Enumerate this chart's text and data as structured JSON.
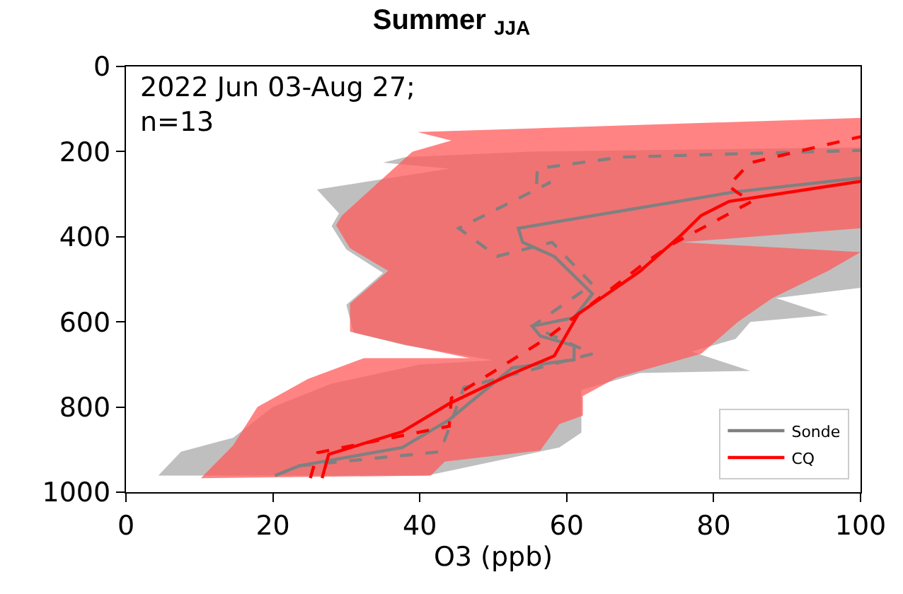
{
  "chart_data": {
    "type": "line",
    "title": "Summer $_{JJA}$",
    "xlabel": "O3 (ppb)",
    "xlim": [
      0,
      100
    ],
    "xticks": [
      0,
      20,
      40,
      60,
      80,
      100
    ],
    "ylim": [
      1000,
      0
    ],
    "yticks": [
      0,
      200,
      400,
      600,
      800,
      1000
    ],
    "legend": "bottom right",
    "annotations": [
      "2022 Jun 03-Aug 27;\nn=13"
    ],
    "series": [
      {
        "type": "area",
        "color": "#a9a9a9",
        "x": [
          4.4,
          7.5,
          14.6,
          20,
          28,
          40,
          50,
          38,
          31,
          30,
          35,
          30,
          28,
          29,
          26,
          44,
          35,
          38,
          55,
          100,
          100,
          100,
          88.5,
          95.6,
          85,
          83,
          77,
          85,
          70,
          62,
          62,
          59,
          41
        ],
        "values": [
          961,
          905,
          872,
          800,
          745,
          700,
          690,
          655,
          625,
          560,
          485,
          430,
          375,
          345,
          289,
          240,
          226,
          213,
          200,
          190,
          420,
          520,
          544,
          584,
          600,
          640,
          670,
          715,
          720,
          760,
          860,
          895,
          961
        ]
      },
      {
        "type": "area",
        "color": "#ff5a5a",
        "x": [
          10.2,
          14.6,
          17.9,
          24.8,
          32.4,
          46.8,
          37.6,
          30.5,
          30.5,
          35.7,
          30.5,
          28.6,
          29.4,
          39,
          44.3,
          39.7,
          100,
          100,
          75.6,
          100,
          95.6,
          88,
          83.3,
          78.3,
          66.8,
          62.2,
          62.2,
          59,
          56.4,
          43.4,
          41.5
        ],
        "values": [
          967,
          890,
          800,
          734,
          685,
          685,
          652,
          623,
          557,
          480,
          427,
          373,
          350,
          200,
          174,
          154,
          121,
          380,
          413,
          436,
          480,
          544,
          600,
          675,
          731,
          774,
          820,
          840,
          902,
          928,
          961
        ]
      },
      {
        "line_style": "dashed",
        "color": "#808080",
        "x": [
          20.3,
          23.6,
          42.8,
          46,
          63.5,
          55.3,
          63.5,
          58,
          50.5,
          45.3,
          57.8,
          55.9,
          56,
          67.4,
          100
        ],
        "values": [
          961,
          938,
          905,
          754,
          675,
          610,
          512,
          413,
          446,
          380,
          272,
          279,
          240,
          213,
          197
        ]
      },
      {
        "name": "Sonde",
        "line_style": "solid",
        "color": "#808080",
        "x": [
          20.3,
          23.6,
          37.6,
          44,
          46.3,
          52.6,
          61,
          61,
          56.4,
          55.3,
          61,
          63.5,
          58.3,
          54,
          53.4,
          82.7,
          100
        ],
        "values": [
          961,
          938,
          895,
          830,
          797,
          708,
          689,
          656,
          633,
          610,
          590,
          534,
          446,
          413,
          380,
          295,
          262
        ]
      },
      {
        "line_style": "dashed",
        "color": "#ff0000",
        "x": [
          25.1,
          26.1,
          44,
          44.3,
          57.4,
          70.6,
          74.5,
          85.2,
          83.3,
          82,
          85,
          100
        ],
        "values": [
          967,
          907,
          845,
          779,
          637,
          462,
          416,
          317,
          297,
          280,
          226,
          165
        ]
      },
      {
        "name": "CQ",
        "line_style": "solid",
        "color": "#ff0000",
        "x": [
          26.7,
          27.6,
          37.6,
          44,
          52,
          58.3,
          61.6,
          69.9,
          75.6,
          78.3,
          82.1,
          100
        ],
        "values": [
          967,
          911,
          858,
          792,
          726,
          680,
          581,
          482,
          396,
          350,
          317,
          270
        ]
      }
    ]
  }
}
